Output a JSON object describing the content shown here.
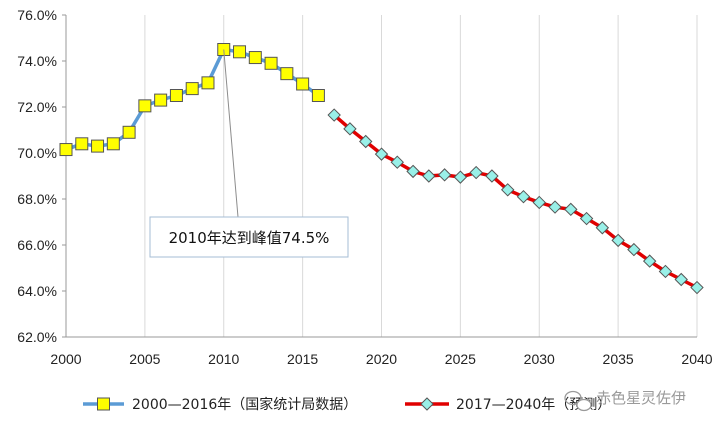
{
  "chart_data": {
    "type": "line",
    "title": "",
    "xlabel": "",
    "ylabel": "",
    "xlim": [
      2000,
      2040
    ],
    "ylim": [
      62.0,
      76.0
    ],
    "x_ticks": [
      "2000",
      "2005",
      "2010",
      "2015",
      "2020",
      "2025",
      "2030",
      "2035",
      "2040"
    ],
    "y_ticks": [
      "62.0%",
      "64.0%",
      "66.0%",
      "68.0%",
      "70.0%",
      "72.0%",
      "74.0%",
      "76.0%"
    ],
    "grid": "vertical",
    "legend_position": "bottom",
    "series": [
      {
        "name": "2000—2016年（国家统计局数据）",
        "color": "#5b9bd5",
        "marker": "square",
        "marker_color": "#ffff00",
        "x": [
          2000,
          2001,
          2002,
          2003,
          2004,
          2005,
          2006,
          2007,
          2008,
          2009,
          2010,
          2011,
          2012,
          2013,
          2014,
          2015,
          2016
        ],
        "values": [
          70.15,
          70.4,
          70.3,
          70.4,
          70.9,
          72.05,
          72.3,
          72.5,
          72.8,
          73.05,
          74.5,
          74.4,
          74.15,
          73.9,
          73.45,
          73.0,
          72.5
        ]
      },
      {
        "name": "2017—2040年（预测）",
        "color": "#e00000",
        "marker": "diamond",
        "marker_color": "#99f0e8",
        "x": [
          2017,
          2018,
          2019,
          2020,
          2021,
          2022,
          2023,
          2024,
          2025,
          2026,
          2027,
          2028,
          2029,
          2030,
          2031,
          2032,
          2033,
          2034,
          2035,
          2036,
          2037,
          2038,
          2039,
          2040
        ],
        "values": [
          71.65,
          71.05,
          70.5,
          69.95,
          69.6,
          69.2,
          69.0,
          69.05,
          68.95,
          69.15,
          69.0,
          68.4,
          68.1,
          67.85,
          67.65,
          67.55,
          67.15,
          66.75,
          66.2,
          65.8,
          65.3,
          64.85,
          64.5,
          64.15
        ]
      }
    ],
    "annotations": [
      {
        "text": "2010年达到峰值74.5%",
        "x": 2010,
        "y": 74.5
      }
    ]
  },
  "watermark": {
    "text": "赤色星灵佐伊"
  }
}
